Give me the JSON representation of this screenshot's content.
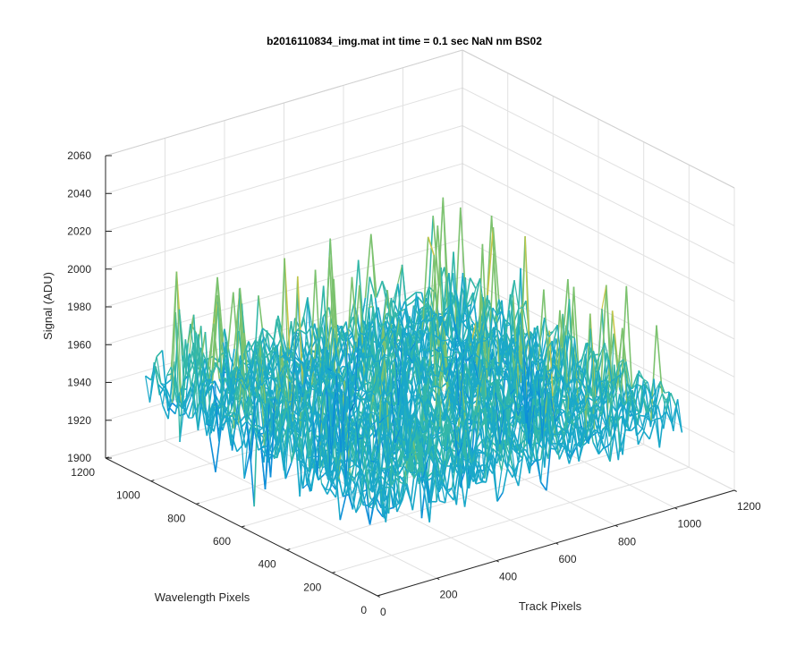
{
  "chart_data": {
    "type": "surface",
    "title": "b2016110834_img.mat int time = 0.1 sec  NaN nm BS02",
    "xlabel": "Track Pixels",
    "ylabel": "Wavelength Pixels",
    "zlabel": "Signal (ADU)",
    "xlim": [
      0,
      1200
    ],
    "ylim": [
      0,
      1200
    ],
    "zlim": [
      1900,
      2060
    ],
    "xticks": [
      0,
      200,
      400,
      600,
      800,
      1000,
      1200
    ],
    "yticks": [
      0,
      200,
      400,
      600,
      800,
      1000,
      1200
    ],
    "zticks": [
      1900,
      1920,
      1940,
      1960,
      1980,
      2000,
      2020,
      2040,
      2060
    ],
    "data_extent": {
      "x": [
        0,
        1024
      ],
      "y": [
        0,
        1024
      ]
    },
    "signal_mean": 1950,
    "signal_min_approx": 1905,
    "signal_max_approx": 2045,
    "grid": true,
    "colormap": [
      "#0072bd",
      "#0e8fd8",
      "#1aa8c9",
      "#33b7a8",
      "#7cc26f",
      "#c8c64a",
      "#e5c23a"
    ]
  }
}
